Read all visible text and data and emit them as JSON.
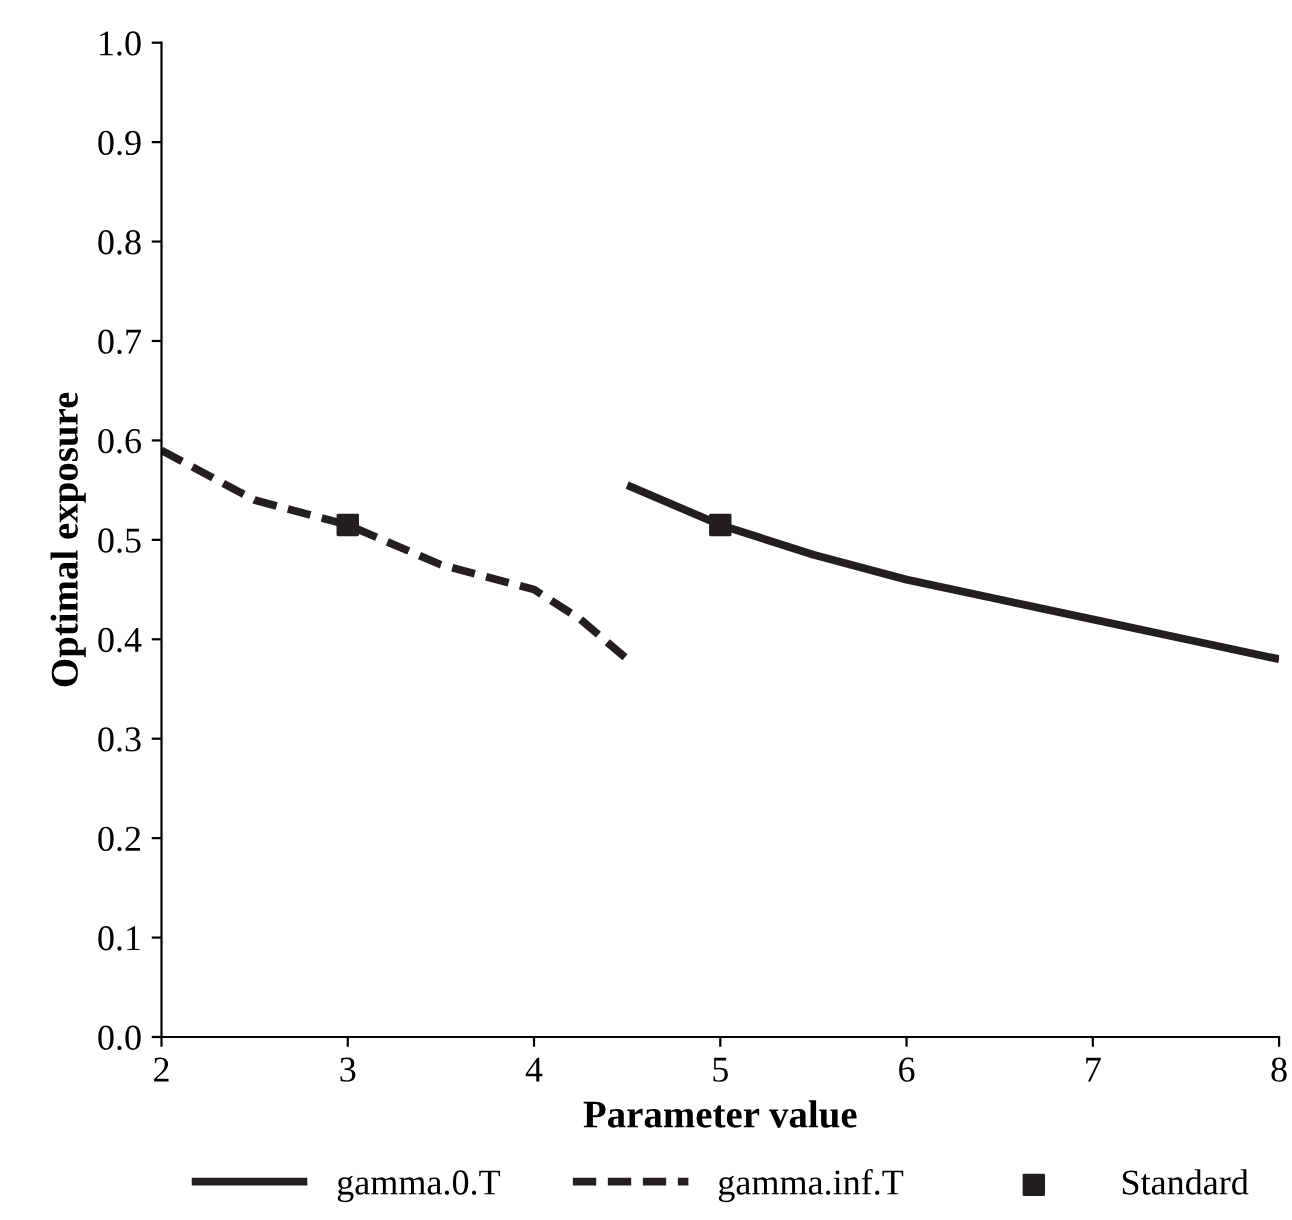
{
  "chart_data": {
    "type": "line",
    "xlabel": "Parameter value",
    "ylabel": "Optimal exposure",
    "series": [
      {
        "name": "gamma.0.T",
        "color": "#231f20",
        "x": [
          4.5,
          5,
          5.5,
          6,
          6.5,
          7,
          7.5,
          8
        ],
        "values": [
          0.555,
          0.515,
          0.485,
          0.46,
          0.44,
          0.42,
          0.4,
          0.38
        ],
        "line_style": "solid"
      },
      {
        "name": "gamma.inf.T",
        "color": "#231f20",
        "x": [
          2,
          2.5,
          3,
          3.5,
          4,
          4.25,
          4.5
        ],
        "values": [
          0.59,
          0.54,
          0.515,
          0.475,
          0.45,
          0.42,
          0.38
        ],
        "line_style": "dashed"
      },
      {
        "name": "Standard",
        "type": "scatter",
        "color": "#231f20",
        "x": [
          3,
          5
        ],
        "values": [
          0.515,
          0.515
        ],
        "marker": "square"
      }
    ],
    "xlim": [
      2,
      8
    ],
    "xticks": [
      2,
      3,
      4,
      5,
      6,
      7,
      8
    ],
    "ylim": [
      0,
      1
    ],
    "yticks": [
      {
        "value": 0,
        "label": "0.0"
      },
      0.1,
      0.2,
      0.3,
      0.4,
      0.5,
      0.6,
      0.7,
      0.8,
      0.9,
      {
        "value": 1,
        "label": "1.0"
      }
    ],
    "grid": false,
    "legend": "bottom"
  }
}
